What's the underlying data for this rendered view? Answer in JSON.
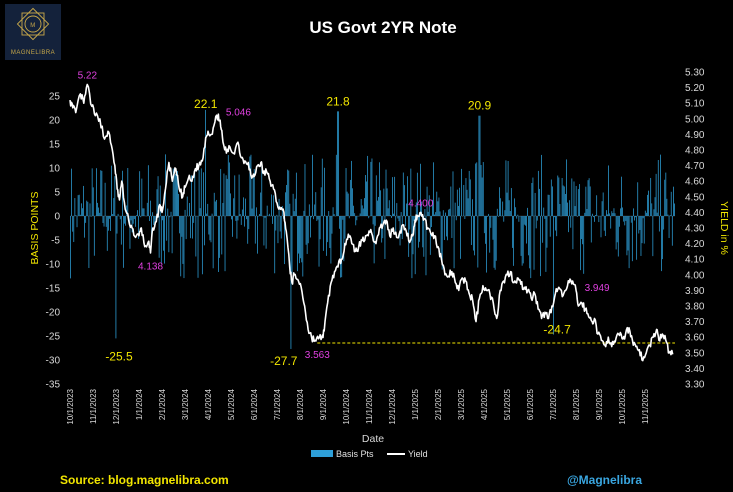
{
  "brand": {
    "logo_text": "MAGNELIBRA",
    "logo_monogram": "M",
    "accent": "#c9a94a"
  },
  "footer": {
    "source": "Source: blog.magnelibra.com",
    "handle": "@Magnelibra",
    "source_color": "#f2e600",
    "handle_color": "#3aa6e0"
  },
  "legend": {
    "items": [
      {
        "label": "Basis Pts",
        "color": "#2e9fd8"
      },
      {
        "label": "Yield",
        "color": "#ffffff"
      }
    ]
  },
  "chart_data": {
    "type": "bar+line",
    "title": "US Govt 2YR Note",
    "xlabel": "Date",
    "ylabel": "BASIS POINTS",
    "y2label": "YIELD in %",
    "ylim": [
      -35,
      30
    ],
    "y2lim": [
      3.3,
      5.3
    ],
    "yticks": [
      "-35",
      "-30",
      "-25",
      "-20",
      "-15",
      "-10",
      "-5",
      "0",
      "5",
      "10",
      "15",
      "20",
      "25"
    ],
    "y2ticks": [
      "3.30",
      "3.40",
      "3.50",
      "3.60",
      "3.70",
      "3.80",
      "3.90",
      "4.00",
      "4.10",
      "4.20",
      "4.30",
      "4.40",
      "4.50",
      "4.60",
      "4.70",
      "4.80",
      "4.90",
      "5.00",
      "5.10",
      "5.20",
      "5.30"
    ],
    "x_ticks": [
      "10/1/2023",
      "11/1/2023",
      "12/1/2023",
      "1/1/2024",
      "2/1/2024",
      "3/1/2024",
      "4/1/2024",
      "5/1/2024",
      "6/1/2024",
      "7/1/2024",
      "8/1/2024",
      "9/1/2024",
      "10/1/2024",
      "11/1/2024",
      "12/1/2024",
      "1/1/2025",
      "2/1/2025",
      "3/1/2025",
      "4/1/2025",
      "5/1/2025",
      "6/1/2025",
      "7/1/2025",
      "8/1/2025",
      "9/1/2025",
      "10/1/2025",
      "11/1/2025"
    ],
    "x_start_month_index": 0,
    "x_end_month_index": 26.3,
    "yield_points": [
      [
        0.0,
        5.12
      ],
      [
        0.12,
        5.07
      ],
      [
        0.25,
        5.04
      ],
      [
        0.45,
        5.16
      ],
      [
        0.6,
        5.1
      ],
      [
        0.75,
        5.22
      ],
      [
        0.95,
        5.08
      ],
      [
        1.1,
        5.02
      ],
      [
        1.3,
        5.0
      ],
      [
        1.5,
        4.87
      ],
      [
        1.65,
        4.92
      ],
      [
        1.8,
        4.83
      ],
      [
        1.95,
        4.7
      ],
      [
        2.05,
        4.55
      ],
      [
        2.15,
        4.48
      ],
      [
        2.25,
        4.6
      ],
      [
        2.4,
        4.42
      ],
      [
        2.55,
        4.35
      ],
      [
        2.7,
        4.3
      ],
      [
        2.85,
        4.24
      ],
      [
        3.0,
        4.25
      ],
      [
        3.1,
        4.3
      ],
      [
        3.25,
        4.18
      ],
      [
        3.4,
        4.21
      ],
      [
        3.5,
        4.14
      ],
      [
        3.6,
        4.3
      ],
      [
        3.75,
        4.34
      ],
      [
        3.9,
        4.45
      ],
      [
        4.0,
        4.4
      ],
      [
        4.15,
        4.55
      ],
      [
        4.3,
        4.72
      ],
      [
        4.45,
        4.6
      ],
      [
        4.6,
        4.68
      ],
      [
        4.75,
        4.55
      ],
      [
        4.9,
        4.5
      ],
      [
        5.0,
        4.56
      ],
      [
        5.15,
        4.62
      ],
      [
        5.3,
        4.6
      ],
      [
        5.45,
        4.68
      ],
      [
        5.6,
        4.7
      ],
      [
        5.75,
        4.73
      ],
      [
        5.9,
        4.88
      ],
      [
        6.0,
        4.92
      ],
      [
        6.15,
        4.9
      ],
      [
        6.3,
        4.98
      ],
      [
        6.45,
        5.03
      ],
      [
        6.55,
        4.95
      ],
      [
        6.65,
        4.85
      ],
      [
        6.8,
        4.78
      ],
      [
        6.95,
        4.82
      ],
      [
        7.1,
        4.78
      ],
      [
        7.3,
        4.85
      ],
      [
        7.45,
        4.75
      ],
      [
        7.6,
        4.73
      ],
      [
        7.75,
        4.72
      ],
      [
        7.9,
        4.62
      ],
      [
        8.0,
        4.63
      ],
      [
        8.15,
        4.7
      ],
      [
        8.3,
        4.72
      ],
      [
        8.4,
        4.65
      ],
      [
        8.55,
        4.66
      ],
      [
        8.7,
        4.6
      ],
      [
        8.85,
        4.55
      ],
      [
        9.0,
        4.46
      ],
      [
        9.15,
        4.42
      ],
      [
        9.3,
        4.4
      ],
      [
        9.4,
        4.28
      ],
      [
        9.55,
        4.05
      ],
      [
        9.65,
        3.95
      ],
      [
        9.75,
        4.0
      ],
      [
        9.9,
        3.97
      ],
      [
        10.05,
        3.92
      ],
      [
        10.2,
        3.8
      ],
      [
        10.35,
        3.65
      ],
      [
        10.5,
        3.6
      ],
      [
        10.65,
        3.58
      ],
      [
        10.8,
        3.59
      ],
      [
        10.95,
        3.6
      ],
      [
        11.05,
        3.64
      ],
      [
        11.2,
        3.82
      ],
      [
        11.35,
        3.95
      ],
      [
        11.5,
        4.02
      ],
      [
        11.65,
        4.05
      ],
      [
        11.8,
        4.1
      ],
      [
        11.95,
        4.2
      ],
      [
        12.1,
        4.26
      ],
      [
        12.25,
        4.2
      ],
      [
        12.4,
        4.15
      ],
      [
        12.55,
        4.18
      ],
      [
        12.7,
        4.22
      ],
      [
        12.85,
        4.25
      ],
      [
        13.0,
        4.28
      ],
      [
        13.15,
        4.25
      ],
      [
        13.3,
        4.2
      ],
      [
        13.45,
        4.3
      ],
      [
        13.6,
        4.32
      ],
      [
        13.75,
        4.35
      ],
      [
        13.9,
        4.25
      ],
      [
        14.05,
        4.3
      ],
      [
        14.2,
        4.24
      ],
      [
        14.35,
        4.28
      ],
      [
        14.5,
        4.32
      ],
      [
        14.65,
        4.25
      ],
      [
        14.8,
        4.22
      ],
      [
        14.9,
        4.25
      ],
      [
        15.0,
        4.35
      ],
      [
        15.1,
        4.38
      ],
      [
        15.25,
        4.4
      ],
      [
        15.4,
        4.36
      ],
      [
        15.55,
        4.3
      ],
      [
        15.7,
        4.26
      ],
      [
        15.85,
        4.25
      ],
      [
        16.0,
        4.18
      ],
      [
        16.15,
        4.1
      ],
      [
        16.3,
        4.0
      ],
      [
        16.45,
        3.99
      ],
      [
        16.6,
        4.02
      ],
      [
        16.75,
        3.95
      ],
      [
        16.9,
        3.9
      ],
      [
        17.05,
        3.98
      ],
      [
        17.2,
        3.96
      ],
      [
        17.35,
        3.88
      ],
      [
        17.5,
        3.84
      ],
      [
        17.65,
        3.7
      ],
      [
        17.8,
        3.85
      ],
      [
        17.95,
        3.93
      ],
      [
        18.1,
        3.9
      ],
      [
        18.25,
        3.88
      ],
      [
        18.4,
        3.82
      ],
      [
        18.55,
        3.72
      ],
      [
        18.7,
        3.9
      ],
      [
        18.85,
        3.96
      ],
      [
        19.0,
        4.0
      ],
      [
        19.15,
        4.02
      ],
      [
        19.3,
        3.95
      ],
      [
        19.45,
        3.98
      ],
      [
        19.6,
        3.94
      ],
      [
        19.75,
        3.92
      ],
      [
        19.9,
        3.9
      ],
      [
        20.05,
        3.85
      ],
      [
        20.2,
        3.88
      ],
      [
        20.35,
        3.78
      ],
      [
        20.5,
        3.72
      ],
      [
        20.65,
        3.76
      ],
      [
        20.8,
        3.72
      ],
      [
        20.95,
        3.8
      ],
      [
        21.1,
        3.88
      ],
      [
        21.25,
        3.92
      ],
      [
        21.4,
        3.86
      ],
      [
        21.55,
        3.9
      ],
      [
        21.7,
        3.95
      ],
      [
        21.85,
        3.96
      ],
      [
        22.0,
        3.9
      ],
      [
        22.1,
        3.8
      ],
      [
        22.25,
        3.82
      ],
      [
        22.4,
        3.78
      ],
      [
        22.55,
        3.73
      ],
      [
        22.7,
        3.7
      ],
      [
        22.8,
        3.72
      ],
      [
        22.95,
        3.62
      ],
      [
        23.1,
        3.58
      ],
      [
        23.25,
        3.55
      ],
      [
        23.4,
        3.6
      ],
      [
        23.55,
        3.54
      ],
      [
        23.7,
        3.57
      ],
      [
        23.85,
        3.62
      ],
      [
        24.0,
        3.59
      ],
      [
        24.15,
        3.62
      ],
      [
        24.3,
        3.66
      ],
      [
        24.45,
        3.58
      ],
      [
        24.6,
        3.54
      ],
      [
        24.75,
        3.52
      ],
      [
        24.9,
        3.45
      ],
      [
        25.05,
        3.5
      ],
      [
        25.2,
        3.55
      ],
      [
        25.35,
        3.6
      ],
      [
        25.5,
        3.65
      ],
      [
        25.6,
        3.58
      ],
      [
        25.75,
        3.62
      ],
      [
        25.9,
        3.58
      ],
      [
        26.05,
        3.5
      ],
      [
        26.2,
        3.49
      ]
    ],
    "reference_line": {
      "value": 3.563,
      "axis": "y2",
      "style": "dashed",
      "color": "#f2e600"
    },
    "basis_points_series": {
      "name": "Basis Pts",
      "bar_count": 560,
      "max": 22.1,
      "min": -27.7,
      "note": "daily changes in basis points"
    },
    "annotations": [
      {
        "text": "5.22",
        "x": 0.75,
        "axis": "y2",
        "y": 5.22,
        "color": "#e040e0"
      },
      {
        "text": "22.1",
        "x": 5.9,
        "axis": "y",
        "y": 22.1,
        "color": "#f2e600"
      },
      {
        "text": "5.046",
        "x": 6.45,
        "axis": "y2",
        "y": 5.046,
        "color": "#e040e0"
      },
      {
        "text": "21.8",
        "x": 11.65,
        "axis": "y",
        "y": 21.8,
        "color": "#f2e600"
      },
      {
        "text": "20.9",
        "x": 17.8,
        "axis": "y",
        "y": 20.9,
        "color": "#f2e600"
      },
      {
        "text": "4.400",
        "x": 15.25,
        "axis": "y2",
        "y": 4.4,
        "color": "#e040e0"
      },
      {
        "text": "4.138",
        "x": 3.5,
        "axis": "y2",
        "y": 4.138,
        "color": "#e040e0"
      },
      {
        "text": "3.949",
        "x": 21.85,
        "axis": "y2",
        "y": 3.949,
        "color": "#e040e0"
      },
      {
        "text": "-25.5",
        "x": 2.0,
        "axis": "y",
        "y": -25.5,
        "color": "#f2e600"
      },
      {
        "text": "-27.7",
        "x": 9.6,
        "axis": "y",
        "y": -27.7,
        "color": "#f2e600"
      },
      {
        "text": "3.563",
        "x": 10.75,
        "axis": "y2",
        "y": 3.563,
        "color": "#e040e0"
      },
      {
        "text": "-24.7",
        "x": 21.0,
        "axis": "y",
        "y": -24.7,
        "color": "#f2e600"
      }
    ]
  }
}
